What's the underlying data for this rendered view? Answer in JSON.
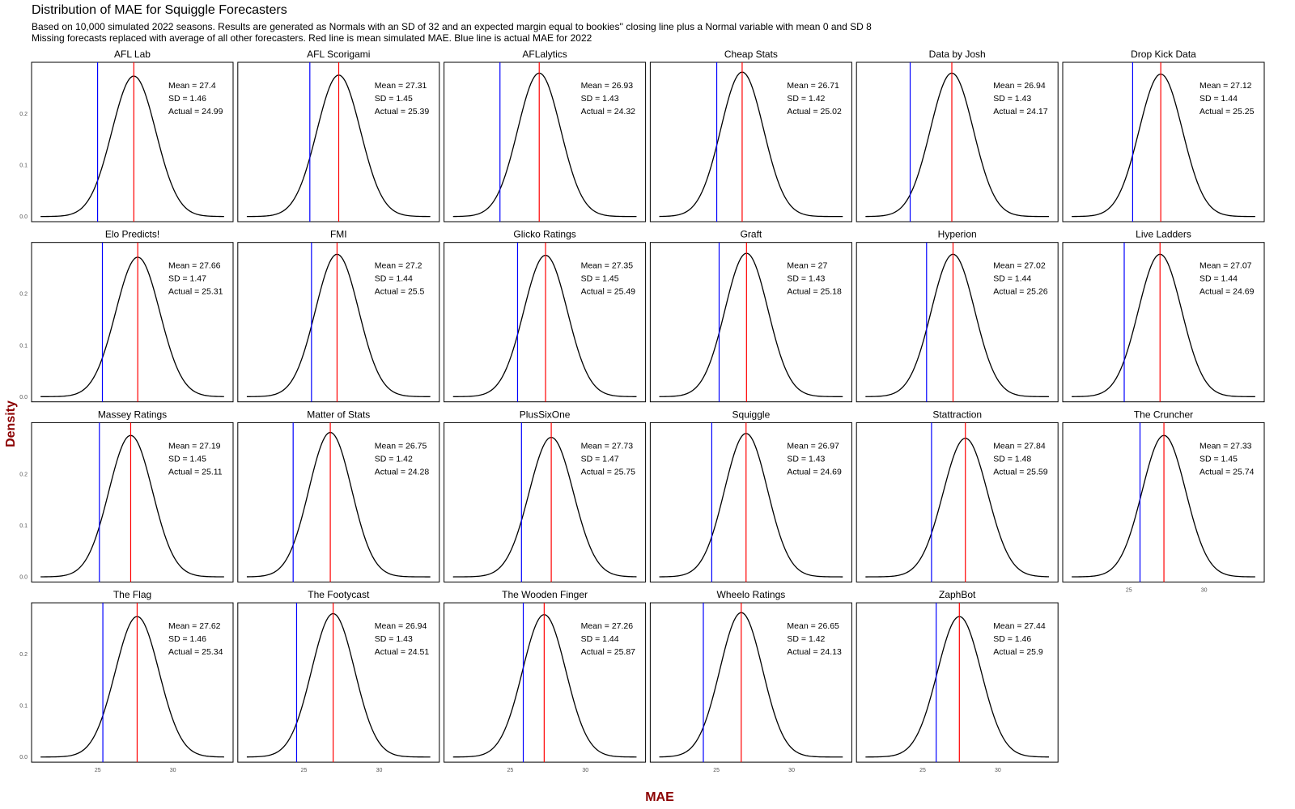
{
  "chart_data": {
    "type": "facet-density",
    "title": "Distribution of MAE for Squiggle Forecasters",
    "subtitle_lines": [
      "Based on 10,000 simulated 2022 seasons. Results are generated as Normals with an SD of 32 and an expected margin equal to bookies'' closing line plus a Normal variable with mean 0 and SD 8",
      "Missing forecasts replaced with average of all other forecasters. Red line is mean simulated MAE. Blue line is actual MAE for 2022"
    ],
    "xlabel": "MAE",
    "ylabel": "Density",
    "x_ticks": [
      25,
      30
    ],
    "y_ticks": [
      "0.0",
      "0.1",
      "0.2"
    ],
    "y_tick_values": [
      0,
      0.1,
      0.2
    ],
    "xlim": [
      20.6,
      34
    ],
    "ylim": [
      -0.01,
      0.3
    ],
    "mean_line_color": "#ff0000",
    "actual_line_color": "#0000ff",
    "curve_color": "#000000",
    "stat_labels": {
      "mean": "Mean = ",
      "sd": "SD = ",
      "actual": "Actual = "
    },
    "panels": [
      {
        "name": "AFL Lab",
        "mean": 27.4,
        "sd": 1.46,
        "actual": 24.99
      },
      {
        "name": "AFL Scorigami",
        "mean": 27.31,
        "sd": 1.45,
        "actual": 25.39
      },
      {
        "name": "AFLalytics",
        "mean": 26.93,
        "sd": 1.43,
        "actual": 24.32
      },
      {
        "name": "Cheap Stats",
        "mean": 26.71,
        "sd": 1.42,
        "actual": 25.02
      },
      {
        "name": "Data by Josh",
        "mean": 26.94,
        "sd": 1.43,
        "actual": 24.17
      },
      {
        "name": "Drop Kick Data",
        "mean": 27.12,
        "sd": 1.44,
        "actual": 25.25
      },
      {
        "name": "Elo Predicts!",
        "mean": 27.66,
        "sd": 1.47,
        "actual": 25.31
      },
      {
        "name": "FMI",
        "mean": 27.2,
        "sd": 1.44,
        "actual": 25.5
      },
      {
        "name": "Glicko Ratings",
        "mean": 27.35,
        "sd": 1.45,
        "actual": 25.49
      },
      {
        "name": "Graft",
        "mean": 27,
        "sd": 1.43,
        "actual": 25.18
      },
      {
        "name": "Hyperion",
        "mean": 27.02,
        "sd": 1.44,
        "actual": 25.26
      },
      {
        "name": "Live Ladders",
        "mean": 27.07,
        "sd": 1.44,
        "actual": 24.69
      },
      {
        "name": "Massey Ratings",
        "mean": 27.19,
        "sd": 1.45,
        "actual": 25.11
      },
      {
        "name": "Matter of Stats",
        "mean": 26.75,
        "sd": 1.42,
        "actual": 24.28
      },
      {
        "name": "PlusSixOne",
        "mean": 27.73,
        "sd": 1.47,
        "actual": 25.75
      },
      {
        "name": "Squiggle",
        "mean": 26.97,
        "sd": 1.43,
        "actual": 24.69
      },
      {
        "name": "Stattraction",
        "mean": 27.84,
        "sd": 1.48,
        "actual": 25.59
      },
      {
        "name": "The Cruncher",
        "mean": 27.33,
        "sd": 1.45,
        "actual": 25.74
      },
      {
        "name": "The Flag",
        "mean": 27.62,
        "sd": 1.46,
        "actual": 25.34
      },
      {
        "name": "The Footycast",
        "mean": 26.94,
        "sd": 1.43,
        "actual": 24.51
      },
      {
        "name": "The Wooden Finger",
        "mean": 27.26,
        "sd": 1.44,
        "actual": 25.87
      },
      {
        "name": "Wheelo Ratings",
        "mean": 26.65,
        "sd": 1.42,
        "actual": 24.13
      },
      {
        "name": "ZaphBot",
        "mean": 27.44,
        "sd": 1.46,
        "actual": 25.9
      }
    ]
  }
}
